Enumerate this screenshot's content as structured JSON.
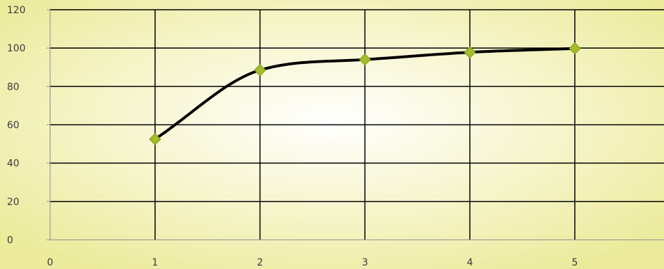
{
  "chart_data": {
    "type": "line",
    "title": "",
    "xlabel": "",
    "ylabel": "",
    "xlim": [
      0,
      5.85
    ],
    "ylim": [
      0,
      120
    ],
    "x_ticks": [
      0,
      1,
      2,
      3,
      4,
      5
    ],
    "y_ticks": [
      0,
      20,
      40,
      60,
      80,
      100,
      120
    ],
    "grid": true,
    "smooth": true,
    "legend": "none",
    "series": [
      {
        "x": [
          1,
          2,
          3,
          4,
          5
        ],
        "values": [
          52.5,
          88.5,
          94,
          97.8,
          99.8
        ]
      }
    ],
    "colors": {
      "background_edge": "#eceb9c",
      "background_center": "#ffffff",
      "line": "#000000",
      "marker": "#a4bc2a",
      "grid": "#000000"
    }
  }
}
